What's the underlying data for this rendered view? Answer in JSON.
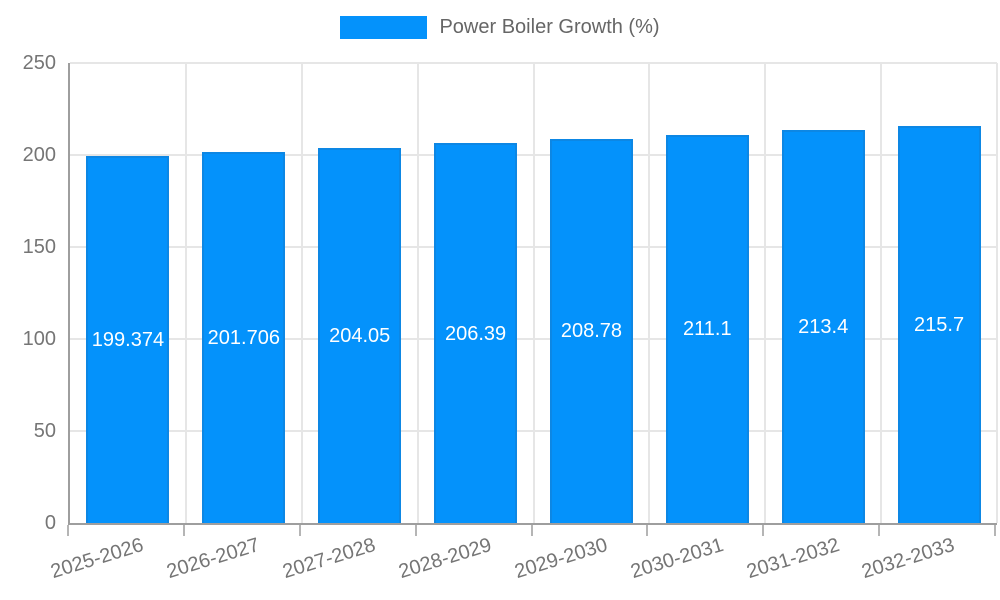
{
  "legend": {
    "label": "Power Boiler Growth (%)"
  },
  "chart_data": {
    "type": "bar",
    "title": "",
    "xlabel": "",
    "ylabel": "",
    "categories": [
      "2025-2026",
      "2026-2027",
      "2027-2028",
      "2028-2029",
      "2029-2030",
      "2030-2031",
      "2031-2032",
      "2032-2033"
    ],
    "series": [
      {
        "name": "Power Boiler Growth (%)",
        "values": [
          199.374,
          201.706,
          204.05,
          206.39,
          208.78,
          211.1,
          213.4,
          215.7
        ]
      }
    ],
    "value_labels": [
      "199.374",
      "201.706",
      "204.05",
      "206.39",
      "208.78",
      "211.1",
      "213.4",
      "215.7"
    ],
    "ylim": [
      0,
      250
    ],
    "yticks": [
      "0",
      "50",
      "100",
      "150",
      "200",
      "250"
    ],
    "grid": true,
    "legend_position": "top",
    "colors": {
      "bar_fill": "#0492fb",
      "bar_border": "#0d87e4",
      "value_label": "#ffffff",
      "grid_line": "#e6e6e6",
      "axis_line": "#9e9e9e",
      "tick_text": "#757575"
    }
  }
}
